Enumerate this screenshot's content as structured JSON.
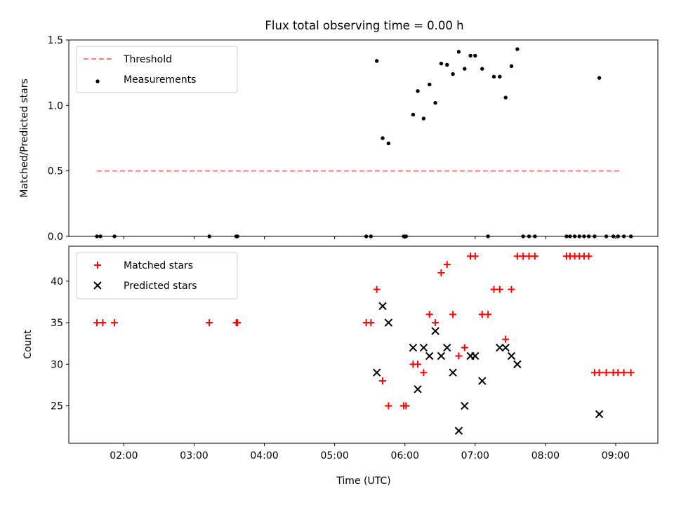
{
  "figure": {
    "title": "Flux total observing time = 0.00 h"
  },
  "colors": {
    "threshold": "#ff7f7f",
    "measurement": "#000000",
    "matched": "#ff0000",
    "predicted": "#000000"
  },
  "chart_data": [
    {
      "type": "scatter",
      "title": "Flux total observing time = 0.00 h",
      "xlabel": "",
      "ylabel": "Matched/Predicted stars",
      "xlim": [
        "01:13",
        "09:36"
      ],
      "ylim": [
        0,
        1.5
      ],
      "yticks": [
        0.0,
        0.5,
        1.0,
        1.5
      ],
      "ytick_labels": [
        "0.0",
        "0.5",
        "1.0",
        "1.5"
      ],
      "xticks": [
        "02:00",
        "03:00",
        "04:00",
        "05:00",
        "06:00",
        "07:00",
        "08:00",
        "09:00"
      ],
      "xtick_labels_shown": false,
      "legend": {
        "placement": "upper-left",
        "entries": [
          "Threshold",
          "Measurements"
        ]
      },
      "series": [
        {
          "name": "Threshold",
          "kind": "dashed-line",
          "x": [
            "01:37",
            "09:05"
          ],
          "y": [
            0.5,
            0.5
          ]
        },
        {
          "name": "Measurements",
          "kind": "dots",
          "x": [
            "01:37",
            "01:40",
            "01:52",
            "03:13",
            "03:36",
            "03:37",
            "05:27",
            "05:31",
            "05:36",
            "05:41",
            "05:46",
            "05:59",
            "06:01",
            "06:07",
            "06:11",
            "06:16",
            "06:21",
            "06:26",
            "06:31",
            "06:36",
            "06:41",
            "06:46",
            "06:51",
            "06:56",
            "07:00",
            "07:06",
            "07:11",
            "07:16",
            "07:21",
            "07:26",
            "07:31",
            "07:36",
            "07:41",
            "07:46",
            "07:51",
            "08:18",
            "08:21",
            "08:25",
            "08:29",
            "08:33",
            "08:37",
            "08:42",
            "08:46",
            "08:52",
            "08:58",
            "09:02",
            "09:07",
            "09:13"
          ],
          "y": [
            0,
            0,
            0,
            0,
            0,
            0,
            0,
            0,
            1.34,
            0.75,
            0.71,
            0,
            0,
            0.93,
            1.11,
            0.9,
            1.16,
            1.02,
            1.32,
            1.31,
            1.24,
            1.41,
            1.28,
            1.38,
            1.38,
            1.28,
            0,
            1.22,
            1.22,
            1.06,
            1.3,
            1.43,
            0,
            0,
            0,
            0,
            0,
            0,
            0,
            0,
            0,
            0,
            1.21,
            0,
            0,
            0,
            0,
            0
          ]
        }
      ]
    },
    {
      "type": "scatter",
      "xlabel": "Time (UTC)",
      "ylabel": "Count",
      "xlim": [
        "01:13",
        "09:36"
      ],
      "ylim": [
        20.5,
        44.2
      ],
      "yticks": [
        25,
        30,
        35,
        40
      ],
      "ytick_labels": [
        "25",
        "30",
        "35",
        "40"
      ],
      "xticks": [
        "02:00",
        "03:00",
        "04:00",
        "05:00",
        "06:00",
        "07:00",
        "08:00",
        "09:00"
      ],
      "xtick_labels": [
        "02:00",
        "03:00",
        "04:00",
        "05:00",
        "06:00",
        "07:00",
        "08:00",
        "09:00"
      ],
      "legend": {
        "placement": "upper-left",
        "entries": [
          "Matched stars",
          "Predicted stars"
        ]
      },
      "series": [
        {
          "name": "Matched stars",
          "marker": "+",
          "x": [
            "01:37",
            "01:42",
            "01:52",
            "03:13",
            "03:36",
            "03:37",
            "05:27",
            "05:31",
            "05:36",
            "05:41",
            "05:46",
            "05:59",
            "06:01",
            "06:07",
            "06:11",
            "06:16",
            "06:21",
            "06:26",
            "06:31",
            "06:36",
            "06:41",
            "06:46",
            "06:51",
            "06:56",
            "07:00",
            "07:06",
            "07:11",
            "07:16",
            "07:21",
            "07:26",
            "07:31",
            "07:36",
            "07:41",
            "07:46",
            "07:51",
            "08:18",
            "08:21",
            "08:25",
            "08:29",
            "08:33",
            "08:37",
            "08:42",
            "08:46",
            "08:52",
            "08:58",
            "09:02",
            "09:07",
            "09:13"
          ],
          "y": [
            35,
            35,
            35,
            35,
            35,
            35,
            35,
            35,
            39,
            28,
            25,
            25,
            25,
            30,
            30,
            29,
            36,
            35,
            41,
            42,
            36,
            31,
            32,
            43,
            43,
            36,
            36,
            39,
            39,
            33,
            39,
            43,
            43,
            43,
            43,
            43,
            43,
            43,
            43,
            43,
            43,
            29,
            29,
            29,
            29,
            29,
            29,
            29
          ]
        },
        {
          "name": "Predicted stars",
          "marker": "x",
          "x": [
            "05:36",
            "05:41",
            "05:46",
            "06:07",
            "06:11",
            "06:16",
            "06:21",
            "06:26",
            "06:31",
            "06:36",
            "06:41",
            "06:46",
            "06:51",
            "06:56",
            "07:00",
            "07:06",
            "07:21",
            "07:26",
            "07:31",
            "07:36",
            "08:46"
          ],
          "y": [
            29,
            37,
            35,
            32,
            27,
            32,
            31,
            34,
            31,
            32,
            29,
            22,
            25,
            31,
            31,
            28,
            32,
            32,
            31,
            30,
            24
          ]
        }
      ]
    }
  ]
}
